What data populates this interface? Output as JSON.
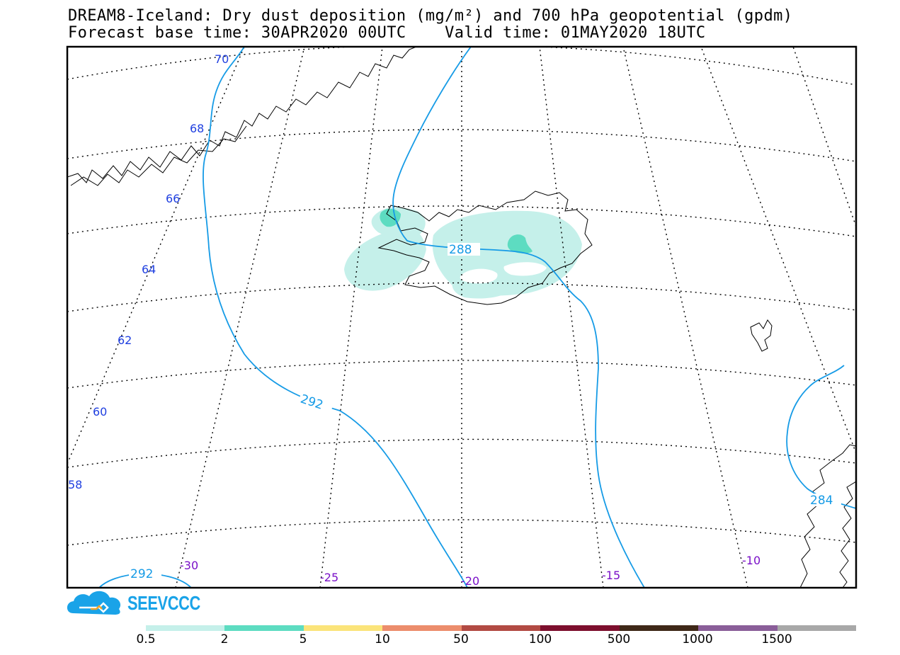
{
  "title": {
    "line1": "DREAM8-Iceland: Dry dust deposition (mg/m²) and 700 hPa geopotential (gpdm)",
    "line2": "Forecast base time: 30APR2020 00UTC    Valid time: 01MAY2020 18UTC"
  },
  "map": {
    "latitude_labels": [
      "70",
      "68",
      "66",
      "64",
      "62",
      "60",
      "58"
    ],
    "longitude_labels": [
      "-30",
      "-25",
      "-20",
      "-15",
      "-10"
    ],
    "isohypse_labels": [
      "288",
      "292",
      "292",
      "284"
    ],
    "colors": {
      "frame": "#000000",
      "coast": "#000000",
      "isohypse": "#169be6",
      "dust_level1": "#c5f0ea",
      "dust_level2": "#5ddcc1",
      "lat_label": "#1f3fe0",
      "lon_label": "#7a10c8"
    }
  },
  "logo": {
    "text": "SEEVCCC",
    "icon": "cloud-logo-icon",
    "color": "#1aa3e8"
  },
  "colorbar": {
    "tick_labels": [
      "0.5",
      "2",
      "5",
      "10",
      "50",
      "100",
      "500",
      "1000",
      "1500"
    ],
    "colors": [
      "#c5f0ea",
      "#5ddcc1",
      "#fbe47a",
      "#ec8d6c",
      "#b24a43",
      "#7d0f2e",
      "#3f2818",
      "#8a5e99",
      "#a8a8a8"
    ]
  }
}
